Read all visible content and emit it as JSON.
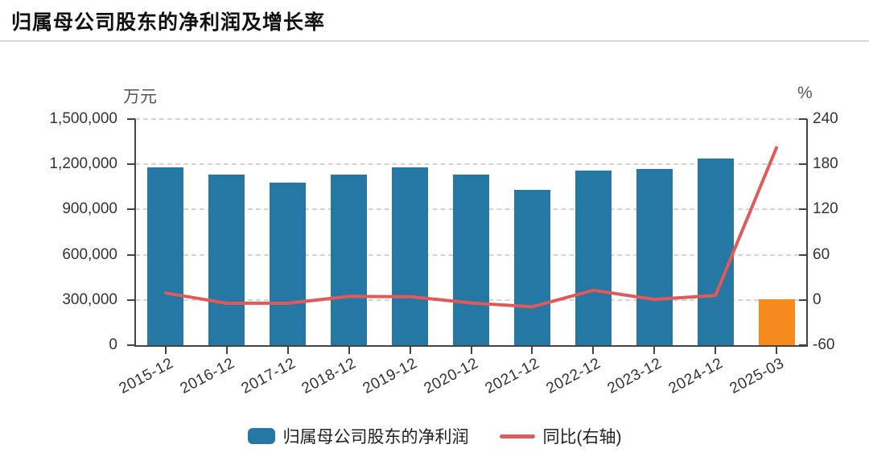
{
  "page": {
    "title": "归属母公司股东的净利润及增长率"
  },
  "chart_data": {
    "type": "bar+line",
    "categories": [
      "2015-12",
      "2016-12",
      "2017-12",
      "2018-12",
      "2019-12",
      "2020-12",
      "2021-12",
      "2022-12",
      "2023-12",
      "2024-12",
      "2025-03"
    ],
    "series": [
      {
        "name": "归属母公司股东的净利润",
        "type": "bar",
        "yaxis": "left",
        "unit": "万元",
        "values": [
          1180000,
          1130000,
          1080000,
          1130000,
          1180000,
          1130000,
          1030000,
          1160000,
          1170000,
          1240000,
          305000
        ],
        "color": "#2577a4",
        "highlight": {
          "index": 10,
          "color": "#f78a1d"
        }
      },
      {
        "name": "同比(右轴)",
        "type": "line",
        "yaxis": "right",
        "unit": "%",
        "values": [
          9.2,
          -4.4,
          -4.4,
          4.7,
          4.3,
          -3.9,
          -9.1,
          12.8,
          0.7,
          5.9,
          202.0
        ],
        "color": "#e15a5a"
      }
    ],
    "left_axis": {
      "unit": "万元",
      "min": 0,
      "max": 1500000,
      "tick_labels": [
        "1,500,000",
        "1,200,000",
        "900,000",
        "600,000",
        "300,000",
        "0"
      ]
    },
    "right_axis": {
      "unit": "%",
      "min": -60,
      "max": 240,
      "tick_labels": [
        "240",
        "180",
        "120",
        "60",
        "0",
        "-60"
      ]
    },
    "grid": "horizontal-dashed",
    "legend": {
      "position": "bottom-center",
      "items": [
        {
          "label": "归属母公司股东的净利润",
          "marker": "round-rect",
          "color": "#2577a4"
        },
        {
          "label": "同比(右轴)",
          "marker": "line",
          "color": "#e15a5a"
        }
      ]
    }
  },
  "colors": {
    "bar_blue": "#2577a4",
    "bar_orange": "#f78a1d",
    "line_red": "#e15a5a",
    "axis": "#444444",
    "grid_dash": "#d4d4d4",
    "divider": "#d8d8d8",
    "title_text": "#111111",
    "tick_text": "#333333",
    "unit_text": "#555555"
  }
}
